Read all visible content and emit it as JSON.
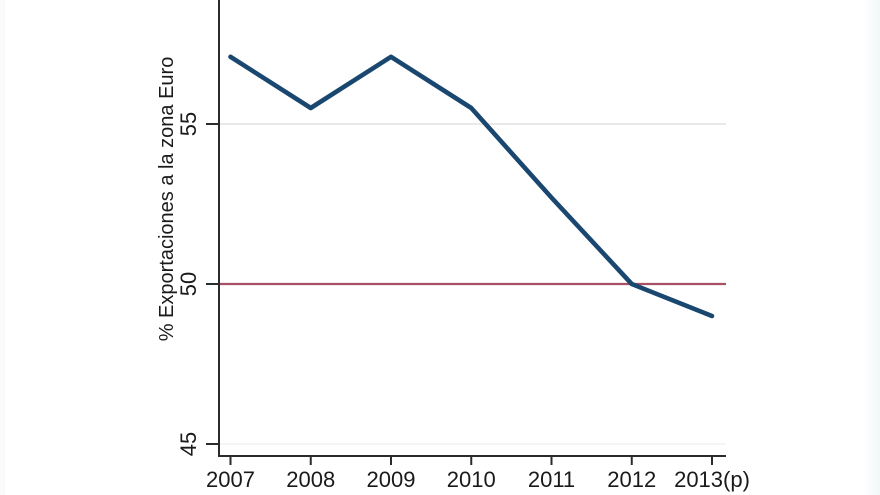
{
  "chart_data": {
    "type": "line",
    "title": "",
    "xlabel": "",
    "ylabel": "% Exportaciones a la zona Euro",
    "x": [
      2007,
      2008,
      2009,
      2010,
      2011,
      2012,
      2013
    ],
    "x_tick_labels": [
      "2007",
      "2008",
      "2009",
      "2010",
      "2011",
      "2012",
      "2013(p)"
    ],
    "y_ticks": [
      45,
      50,
      55
    ],
    "ylim": [
      44.6,
      58.9
    ],
    "series": [
      {
        "name": "% Exportaciones a la zona Euro",
        "values": [
          57.1,
          55.5,
          57.1,
          55.5,
          52.7,
          50.0,
          49.0
        ]
      }
    ],
    "reference_line": {
      "value": 50
    },
    "gridlines": [
      {
        "value": 55,
        "color": "#e2e2e2"
      },
      {
        "value": 45,
        "color": "#f2f2f2"
      }
    ],
    "legend": "none",
    "colors": {
      "series_line": "#1a476f",
      "reference_line": "#a85064",
      "axis": "#2b2b2b",
      "tick_text": "#1a1a1a",
      "background": "#ffffff"
    }
  }
}
